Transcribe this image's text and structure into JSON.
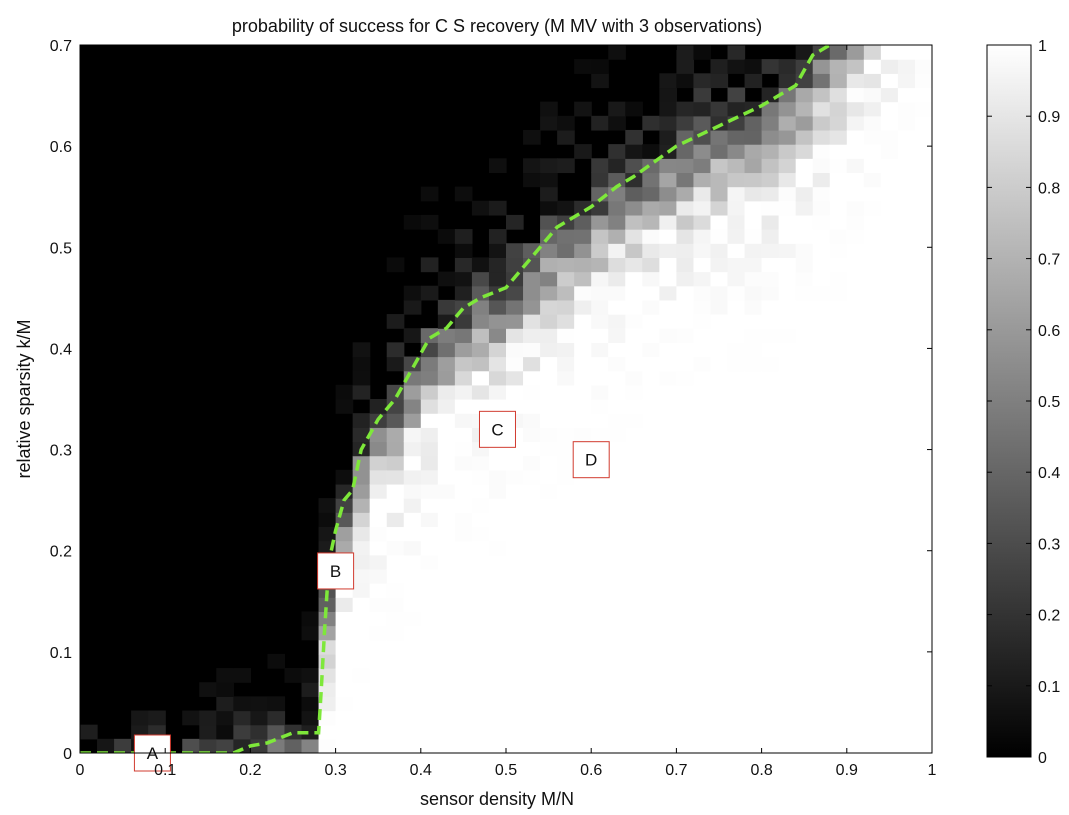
{
  "chart_data": {
    "type": "heatmap",
    "title": "probability of success for C S recovery (M MV with 3 observations)",
    "xlabel": "sensor density M/N",
    "ylabel": "relative sparsity k/M",
    "xlim": [
      0,
      1
    ],
    "ylim": [
      0,
      0.7
    ],
    "x_ticks": [
      "0",
      "0.1",
      "0.2",
      "0.3",
      "0.4",
      "0.5",
      "0.6",
      "0.7",
      "0.8",
      "0.9",
      "1"
    ],
    "y_ticks": [
      "0",
      "0.1",
      "0.2",
      "0.3",
      "0.4",
      "0.5",
      "0.6",
      "0.7"
    ],
    "colorbar": {
      "colormap": "gray",
      "range": [
        0,
        1
      ],
      "ticks": [
        "0",
        "0.1",
        "0.2",
        "0.3",
        "0.4",
        "0.5",
        "0.6",
        "0.7",
        "0.8",
        "0.9",
        "1"
      ]
    },
    "grid": false,
    "values": "probability of successful recovery, ~1 (white) below the transition curve and ~0 (black) above it",
    "transition_curve": {
      "color": "#7ee83a",
      "style": "dashed",
      "x": [
        0,
        0.1,
        0.18,
        0.2,
        0.22,
        0.25,
        0.28,
        0.283,
        0.287,
        0.29,
        0.295,
        0.3,
        0.31,
        0.32,
        0.33,
        0.35,
        0.37,
        0.39,
        0.41,
        0.43,
        0.45,
        0.47,
        0.5,
        0.53,
        0.56,
        0.6,
        0.63,
        0.65,
        0.7,
        0.75,
        0.8,
        0.84,
        0.86,
        0.88
      ],
      "y": [
        0,
        0,
        0,
        0.007,
        0.01,
        0.02,
        0.02,
        0.06,
        0.12,
        0.16,
        0.2,
        0.22,
        0.25,
        0.26,
        0.3,
        0.33,
        0.35,
        0.38,
        0.41,
        0.42,
        0.44,
        0.45,
        0.46,
        0.49,
        0.52,
        0.54,
        0.56,
        0.57,
        0.6,
        0.62,
        0.64,
        0.66,
        0.69,
        0.7
      ]
    },
    "markers": [
      {
        "label": "A",
        "x": 0.085,
        "y": 0
      },
      {
        "label": "B",
        "x": 0.3,
        "y": 0.18
      },
      {
        "label": "C",
        "x": 0.49,
        "y": 0.32
      },
      {
        "label": "D",
        "x": 0.6,
        "y": 0.29
      }
    ]
  }
}
